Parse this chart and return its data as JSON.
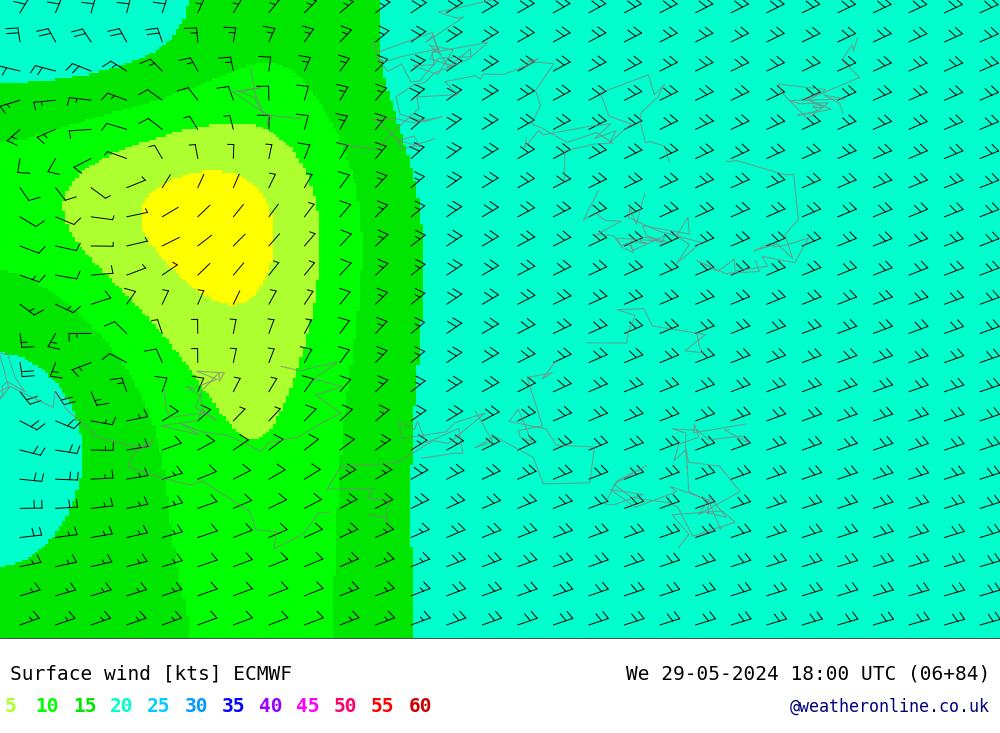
{
  "title_left": "Surface wind [kts] ECMWF",
  "title_right": "We 29-05-2024 18:00 UTC (06+84)",
  "credit": "@weatheronline.co.uk",
  "legend_values": [
    5,
    10,
    15,
    20,
    25,
    30,
    35,
    40,
    45,
    50,
    55,
    60
  ],
  "legend_colors": [
    "#adff2f",
    "#00ff00",
    "#00e600",
    "#00ffcc",
    "#00ccff",
    "#0099ff",
    "#0000ff",
    "#9900ff",
    "#ff00ff",
    "#ff0066",
    "#ff0000",
    "#cc0000"
  ],
  "colormap_levels": [
    0,
    5,
    10,
    15,
    20,
    25,
    30,
    35,
    40,
    45,
    50,
    55,
    60,
    100
  ],
  "colormap_colors": [
    "#ffff00",
    "#adff2f",
    "#00ff00",
    "#00e600",
    "#00ffcc",
    "#00ccff",
    "#0099ff",
    "#0000ff",
    "#9900ff",
    "#ff00ff",
    "#ff0066",
    "#ff0000",
    "#cc0000"
  ],
  "bg_color": "#ffffff",
  "map_bg": "#ffff00",
  "title_fontsize": 14,
  "legend_fontsize": 14,
  "credit_fontsize": 12,
  "figsize": [
    10.0,
    7.33
  ],
  "dpi": 100
}
